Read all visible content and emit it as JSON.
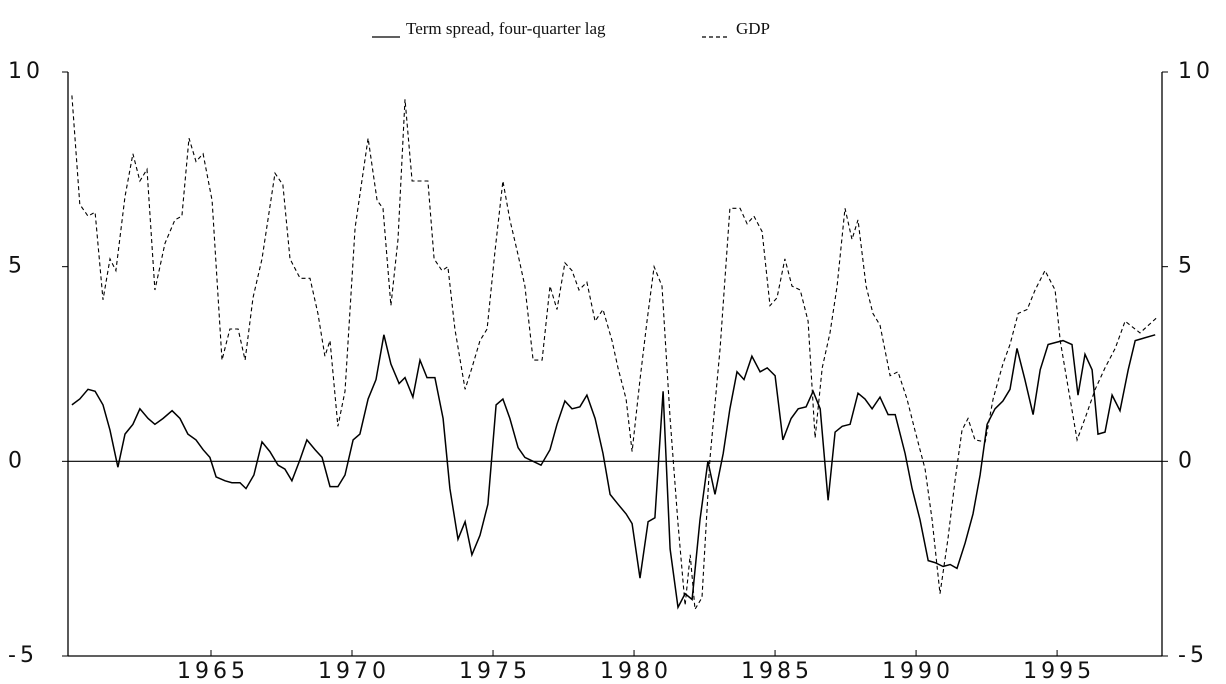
{
  "chart_data": {
    "type": "line",
    "series": [
      {
        "name": "Term spread, four-quarter lag",
        "color": "#000000",
        "style": "solid",
        "x": [
          1960.07,
          1960.35,
          1960.64,
          1960.89,
          1961.17,
          1961.42,
          1961.7,
          1961.95,
          1962.23,
          1962.48,
          1962.77,
          1963.01,
          1963.3,
          1963.62,
          1963.9,
          1964.18,
          1964.47,
          1964.72,
          1964.96,
          1965.18,
          1965.5,
          1965.74,
          1966.03,
          1966.24,
          1966.52,
          1966.81,
          1967.09,
          1967.38,
          1967.62,
          1967.87,
          1968.16,
          1968.4,
          1968.69,
          1968.94,
          1969.22,
          1969.5,
          1969.75,
          1970.04,
          1970.28,
          1970.57,
          1970.85,
          1971.13,
          1971.38,
          1971.67,
          1971.88,
          1972.16,
          1972.41,
          1972.66,
          1972.94,
          1973.23,
          1973.47,
          1973.76,
          1974.01,
          1974.25,
          1974.54,
          1974.82,
          1975.11,
          1975.35,
          1975.6,
          1975.89,
          1976.13,
          1976.42,
          1976.7,
          1977.02,
          1977.27,
          1977.55,
          1977.8,
          1978.08,
          1978.33,
          1978.62,
          1978.9,
          1979.15,
          1979.43,
          1979.72,
          1979.93,
          1980.21,
          1980.5,
          1980.74,
          1981.03,
          1981.28,
          1981.56,
          1981.81,
          1982.06,
          1982.34,
          1982.62,
          1982.87,
          1983.16,
          1983.4,
          1983.65,
          1983.9,
          1984.18,
          1984.47,
          1984.72,
          1985.0,
          1985.28,
          1985.57,
          1985.82,
          1986.1,
          1986.35,
          1986.6,
          1986.88,
          1987.13,
          1987.38,
          1987.66,
          1987.94,
          1988.19,
          1988.44,
          1988.72,
          1989.01,
          1989.26,
          1989.61,
          1989.86,
          1990.14,
          1990.43,
          1990.67,
          1990.96,
          1991.21,
          1991.45,
          1991.74,
          1992.02,
          1992.27,
          1992.52,
          1992.8,
          1993.08,
          1993.33,
          1993.58,
          1993.86,
          1994.15,
          1994.4,
          1994.68,
          1994.93,
          1995.21,
          1995.53,
          1995.74,
          1995.99,
          1996.24,
          1996.45,
          1996.7,
          1996.95,
          1997.23,
          1997.52,
          1997.77,
          1998.48
        ],
        "values": [
          1.45,
          1.6,
          1.85,
          1.8,
          1.45,
          0.8,
          -0.15,
          0.7,
          0.95,
          1.35,
          1.1,
          0.95,
          1.1,
          1.3,
          1.1,
          0.7,
          0.55,
          0.3,
          0.1,
          -0.4,
          -0.5,
          -0.55,
          -0.55,
          -0.7,
          -0.35,
          0.5,
          0.25,
          -0.1,
          -0.2,
          -0.5,
          0.05,
          0.55,
          0.3,
          0.1,
          -0.65,
          -0.65,
          -0.35,
          0.55,
          0.7,
          1.6,
          2.1,
          3.25,
          2.5,
          2.0,
          2.15,
          1.65,
          2.6,
          2.15,
          2.15,
          1.1,
          -0.7,
          -2.0,
          -1.55,
          -2.4,
          -1.9,
          -1.1,
          1.45,
          1.6,
          1.1,
          0.35,
          0.1,
          0.0,
          -0.1,
          0.3,
          0.95,
          1.55,
          1.35,
          1.4,
          1.7,
          1.1,
          0.2,
          -0.85,
          -1.1,
          -1.35,
          -1.6,
          -3.0,
          -1.55,
          -1.45,
          1.8,
          -2.25,
          -3.75,
          -3.4,
          -3.55,
          -1.5,
          0.0,
          -0.85,
          0.2,
          1.35,
          2.3,
          2.1,
          2.7,
          2.3,
          2.4,
          2.2,
          0.55,
          1.1,
          1.35,
          1.4,
          1.8,
          1.35,
          -1.0,
          0.75,
          0.9,
          0.95,
          1.75,
          1.6,
          1.35,
          1.65,
          1.2,
          1.2,
          0.2,
          -0.7,
          -1.5,
          -2.55,
          -2.6,
          -2.7,
          -2.65,
          -2.75,
          -2.1,
          -1.35,
          -0.35,
          0.95,
          1.35,
          1.55,
          1.85,
          2.9,
          2.1,
          1.2,
          2.35,
          3.0,
          3.05,
          3.1,
          3.0,
          1.7,
          2.75,
          2.35,
          0.7,
          0.75,
          1.7,
          1.3,
          2.35,
          3.1,
          3.25
        ]
      },
      {
        "name": "GDP",
        "color": "#000000",
        "style": "dashed",
        "x": [
          1960.07,
          1960.35,
          1960.64,
          1960.89,
          1961.17,
          1961.42,
          1961.63,
          1961.95,
          1962.23,
          1962.48,
          1962.73,
          1963.01,
          1963.37,
          1963.72,
          1963.97,
          1964.22,
          1964.47,
          1964.72,
          1965.04,
          1965.39,
          1965.67,
          1965.96,
          1966.21,
          1966.49,
          1966.81,
          1967.27,
          1967.55,
          1967.8,
          1968.16,
          1968.51,
          1968.79,
          1969.04,
          1969.22,
          1969.5,
          1969.75,
          1970.11,
          1970.57,
          1970.89,
          1971.1,
          1971.38,
          1971.63,
          1971.88,
          1972.13,
          1972.41,
          1972.69,
          1972.91,
          1973.19,
          1973.4,
          1973.65,
          1974.01,
          1974.25,
          1974.54,
          1974.79,
          1975.07,
          1975.35,
          1975.6,
          1975.89,
          1976.13,
          1976.42,
          1976.74,
          1977.02,
          1977.27,
          1977.55,
          1977.8,
          1978.05,
          1978.33,
          1978.62,
          1978.9,
          1979.22,
          1979.43,
          1979.72,
          1979.93,
          1980.21,
          1980.46,
          1980.71,
          1980.99,
          1981.28,
          1981.56,
          1981.81,
          1981.99,
          1982.16,
          1982.41,
          1982.69,
          1983.05,
          1983.4,
          1983.76,
          1984.01,
          1984.25,
          1984.54,
          1984.82,
          1985.07,
          1985.35,
          1985.6,
          1985.89,
          1986.17,
          1986.42,
          1986.67,
          1986.95,
          1987.2,
          1987.48,
          1987.73,
          1987.94,
          1988.23,
          1988.47,
          1988.72,
          1989.08,
          1989.36,
          1989.68,
          1989.96,
          1990.32,
          1990.57,
          1990.85,
          1991.13,
          1991.38,
          1991.63,
          1991.84,
          1992.09,
          1992.45,
          1992.73,
          1993.08,
          1993.33,
          1993.62,
          1993.94,
          1994.22,
          1994.57,
          1994.93,
          1995.11,
          1995.46,
          1995.71,
          1995.99,
          1996.35,
          1996.7,
          1997.06,
          1997.41,
          1997.94,
          1998.55
        ],
        "values": [
          9.4,
          6.6,
          6.3,
          6.4,
          4.15,
          5.2,
          4.9,
          6.8,
          7.9,
          7.2,
          7.5,
          4.4,
          5.6,
          6.2,
          6.3,
          8.3,
          7.7,
          7.9,
          6.7,
          2.6,
          3.4,
          3.4,
          2.6,
          4.2,
          5.2,
          7.4,
          7.1,
          5.2,
          4.7,
          4.7,
          3.8,
          2.7,
          3.1,
          0.9,
          1.8,
          6.0,
          8.3,
          6.7,
          6.5,
          4.0,
          5.7,
          9.3,
          7.2,
          7.2,
          7.2,
          5.2,
          4.9,
          5.0,
          3.4,
          1.85,
          2.4,
          3.1,
          3.4,
          5.4,
          7.2,
          6.2,
          5.3,
          4.5,
          2.6,
          2.6,
          4.5,
          3.9,
          5.1,
          4.9,
          4.4,
          4.6,
          3.6,
          3.9,
          3.1,
          2.4,
          1.6,
          0.25,
          2.1,
          3.6,
          5.0,
          4.5,
          1.1,
          -1.6,
          -3.7,
          -2.4,
          -3.8,
          -3.5,
          0.05,
          2.9,
          6.5,
          6.5,
          6.1,
          6.3,
          5.9,
          4.0,
          4.2,
          5.2,
          4.5,
          4.4,
          3.6,
          0.6,
          2.4,
          3.3,
          4.5,
          6.5,
          5.7,
          6.2,
          4.5,
          3.8,
          3.5,
          2.2,
          2.3,
          1.6,
          0.8,
          -0.2,
          -1.5,
          -3.4,
          -2.0,
          -0.5,
          0.8,
          1.1,
          0.55,
          0.5,
          1.6,
          2.5,
          3.0,
          3.8,
          3.9,
          4.4,
          4.9,
          4.4,
          3.1,
          1.6,
          0.55,
          1.1,
          1.85,
          2.4,
          2.9,
          3.6,
          3.3,
          3.7
        ]
      }
    ],
    "xlim": [
      1959.93,
      1998.72
    ],
    "xticks": [
      1965,
      1970,
      1975,
      1980,
      1985,
      1990,
      1995
    ],
    "ylim": [
      -5,
      10
    ],
    "yticks": [
      -5,
      0,
      5,
      10
    ],
    "y2lim": [
      -5,
      10
    ],
    "y2ticks": [
      -5,
      0,
      5,
      10
    ],
    "hlines": [
      0
    ],
    "grid": false,
    "legend": "top"
  }
}
